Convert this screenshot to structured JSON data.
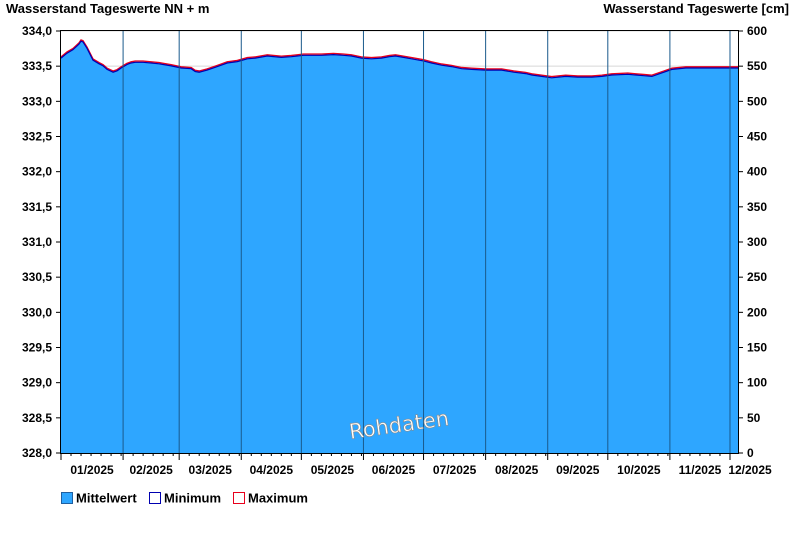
{
  "chart_data": {
    "type": "area",
    "title_left": "Wasserstand Tageswerte NN + m",
    "title_right": "Wasserstand Tageswerte [cm]",
    "ylim_left": [
      328.0,
      334.0
    ],
    "ylim_right": [
      0,
      600
    ],
    "yticks_left": [
      "334,0",
      "333,5",
      "333,0",
      "332,5",
      "332,0",
      "331,5",
      "331,0",
      "330,5",
      "330,0",
      "329,5",
      "329,0",
      "328,5",
      "328,0"
    ],
    "yticks_right": [
      "600",
      "550",
      "500",
      "450",
      "400",
      "350",
      "300",
      "250",
      "200",
      "150",
      "100",
      "50",
      "0"
    ],
    "x_labels": [
      "01/2025",
      "02/2025",
      "03/2025",
      "04/2025",
      "05/2025",
      "06/2025",
      "07/2025",
      "08/2025",
      "09/2025",
      "10/2025",
      "11/2025",
      "12/2025"
    ],
    "x_range_days": [
      0,
      338
    ],
    "grid": true,
    "watermark": "Rohdaten",
    "colors": {
      "mittelwert": "#2ea6ff",
      "minimum": "#0000b0",
      "maximum": "#e8001c",
      "grid": "#d8d8d8",
      "month_line": "#1a5a8c"
    },
    "legend_position": "bottom-left",
    "series": [
      {
        "name": "Mittelwert",
        "key": "mittelwert",
        "x": [
          0,
          3,
          6,
          9,
          10,
          11,
          13,
          16,
          19,
          21,
          23,
          26,
          28,
          30,
          33,
          35,
          37,
          41,
          45,
          49,
          51,
          55,
          60,
          65,
          67,
          69,
          73,
          77,
          80,
          83,
          88,
          93,
          97,
          103,
          110,
          115,
          118,
          121,
          125,
          130,
          136,
          141,
          145,
          150,
          155,
          160,
          164,
          167,
          171,
          175,
          181,
          185,
          190,
          195,
          200,
          205,
          212,
          220,
          226,
          232,
          235,
          240,
          245,
          252,
          258,
          265,
          270,
          275,
          283,
          287,
          291,
          295,
          301,
          305,
          312,
          318,
          324,
          330,
          334,
          338
        ],
        "values": [
          333.62,
          333.69,
          333.74,
          333.82,
          333.86,
          333.85,
          333.76,
          333.59,
          333.54,
          333.51,
          333.46,
          333.42,
          333.44,
          333.48,
          333.53,
          333.55,
          333.56,
          333.56,
          333.55,
          333.54,
          333.53,
          333.51,
          333.48,
          333.47,
          333.43,
          333.42,
          333.45,
          333.49,
          333.52,
          333.55,
          333.57,
          333.61,
          333.62,
          333.65,
          333.63,
          333.64,
          333.65,
          333.66,
          333.66,
          333.66,
          333.67,
          333.66,
          333.65,
          333.62,
          333.61,
          333.62,
          333.64,
          333.65,
          333.63,
          333.61,
          333.58,
          333.55,
          333.52,
          333.5,
          333.47,
          333.46,
          333.45,
          333.45,
          333.42,
          333.4,
          333.38,
          333.36,
          333.34,
          333.36,
          333.35,
          333.35,
          333.36,
          333.38,
          333.39,
          333.38,
          333.37,
          333.36,
          333.42,
          333.46,
          333.48,
          333.48,
          333.48,
          333.48,
          333.48,
          333.48
        ]
      },
      {
        "name": "Minimum",
        "key": "minimum"
      },
      {
        "name": "Maximum",
        "key": "maximum"
      }
    ]
  }
}
